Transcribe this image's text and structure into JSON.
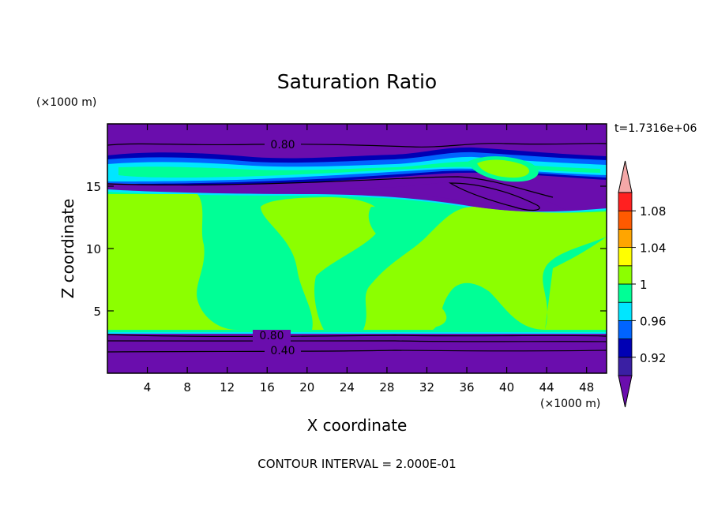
{
  "chart_data": {
    "type": "heatmap",
    "title": "Saturation Ratio",
    "xlabel": "X coordinate",
    "ylabel": "Z coordinate",
    "x_unit": "(×1000 m)",
    "y_unit": "(×1000 m)",
    "time_label": "t=1.7316e+06",
    "footer": "CONTOUR INTERVAL = 2.000E-01",
    "xlim": [
      0,
      50
    ],
    "ylim": [
      0,
      20
    ],
    "x_ticks": [
      4,
      8,
      12,
      16,
      20,
      24,
      28,
      32,
      36,
      40,
      44,
      48
    ],
    "y_ticks": [
      5,
      10,
      15
    ],
    "contour_labels": [
      "0.80",
      "0.80",
      "0.40"
    ],
    "colorbar": {
      "labels": [
        "0.92",
        "0.96",
        "1",
        "1.04",
        "1.08"
      ],
      "colors": [
        "#6a0dad",
        "#3a1fa3",
        "#0000b4",
        "#0064ff",
        "#00e6ff",
        "#00ff96",
        "#8cff00",
        "#ffff00",
        "#ffa500",
        "#ff5a00",
        "#ff2020",
        "#f4a8a8"
      ]
    },
    "layers": [
      {
        "z": [
          18.3,
          20.0
        ],
        "value": "< 0.90",
        "color": "#6a0dad"
      },
      {
        "z": [
          16.0,
          18.3
        ],
        "value": "0.92 – 0.98",
        "color": "#0064ff"
      },
      {
        "z": [
          14.5,
          16.0
        ],
        "value": "< 0.90",
        "color": "#6a0dad"
      },
      {
        "z": [
          3.6,
          14.5
        ],
        "value": "0.98 – 1.02",
        "color": "#8cff00"
      },
      {
        "z": [
          0.0,
          3.6
        ],
        "value": "< 0.90",
        "color": "#6a0dad"
      }
    ]
  }
}
